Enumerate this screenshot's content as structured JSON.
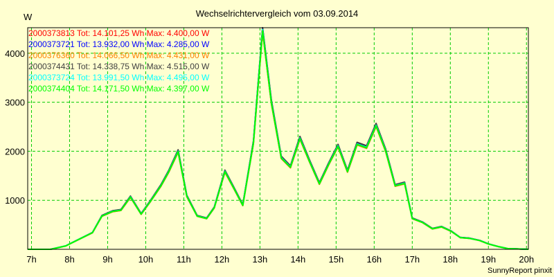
{
  "chart_data": {
    "type": "line",
    "title": "Wechselrichtervergleich vom 03.09.2014",
    "ylabel": "W",
    "xlabel": "",
    "xlim": [
      6.9,
      20.05
    ],
    "ylim": [
      0,
      4520
    ],
    "grid": true,
    "legend_position": "top-left",
    "x_ticks": [
      7,
      8,
      9,
      10,
      11,
      12,
      13,
      14,
      15,
      16,
      17,
      18,
      19,
      20
    ],
    "x_tick_labels": [
      "7h",
      "8h",
      "9h",
      "10h",
      "11h",
      "12h",
      "13h",
      "14h",
      "15h",
      "16h",
      "17h",
      "18h",
      "19h",
      "20h"
    ],
    "y_ticks": [
      1000,
      2000,
      3000,
      4000
    ],
    "y_tick_labels": [
      "1000",
      "2000",
      "3000",
      "4000"
    ],
    "x": [
      6.9,
      7.5,
      7.9,
      8.0,
      8.6,
      8.85,
      9.13,
      9.35,
      9.6,
      9.88,
      10.13,
      10.4,
      10.6,
      10.85,
      11.08,
      11.35,
      11.6,
      11.8,
      12.08,
      12.3,
      12.55,
      12.83,
      13.07,
      13.3,
      13.56,
      13.8,
      14.05,
      14.3,
      14.56,
      14.8,
      15.05,
      15.3,
      15.55,
      15.8,
      16.05,
      16.3,
      16.55,
      16.8,
      17.0,
      17.27,
      17.53,
      17.77,
      18.02,
      18.26,
      18.5,
      18.77,
      19.0,
      19.26,
      19.5,
      20.05
    ],
    "base_values": [
      0,
      0,
      70,
      110,
      340,
      680,
      775,
      800,
      1070,
      720,
      990,
      1300,
      1580,
      2000,
      1085,
      680,
      630,
      850,
      1590,
      1270,
      900,
      2180,
      4480,
      3000,
      1870,
      1680,
      2270,
      1800,
      1340,
      1730,
      2110,
      1590,
      2150,
      2080,
      2530,
      2020,
      1300,
      1350,
      630,
      550,
      420,
      460,
      370,
      240,
      225,
      180,
      110,
      55,
      15,
      0
    ],
    "series": [
      {
        "name": "2000373813",
        "legend": "2000373813 Tot: 14.101,25 Wh Max: 4.400,00 W",
        "color": "#ff0000",
        "factor": 0.99
      },
      {
        "name": "2000373721",
        "legend": "2000373721 Tot: 13.932,00 Wh Max: 4.285,00 W",
        "color": "#0000ff",
        "factor": 1.01
      },
      {
        "name": "2000376360",
        "legend": "2000376360 Tot: 14.066,50 Wh Max: 4.431,00 W",
        "color": "#ff8000",
        "factor": 0.99
      },
      {
        "name": "2000374431",
        "legend": "2000374431 Tot: 14.338,75 Wh Max: 4.515,00 W",
        "color": "#404040",
        "factor": 1.015
      },
      {
        "name": "2000373724",
        "legend": "2000373724 Tot: 13.991,50 Wh Max: 4.495,00 W",
        "color": "#00ffff",
        "factor": 1.0
      },
      {
        "name": "2000374404",
        "legend": "2000374404 Tot: 14.171,50 Wh Max: 4.397,00 W",
        "color": "#00ff00",
        "factor": 0.995
      }
    ]
  },
  "footer": "SunnyReport pinxit"
}
